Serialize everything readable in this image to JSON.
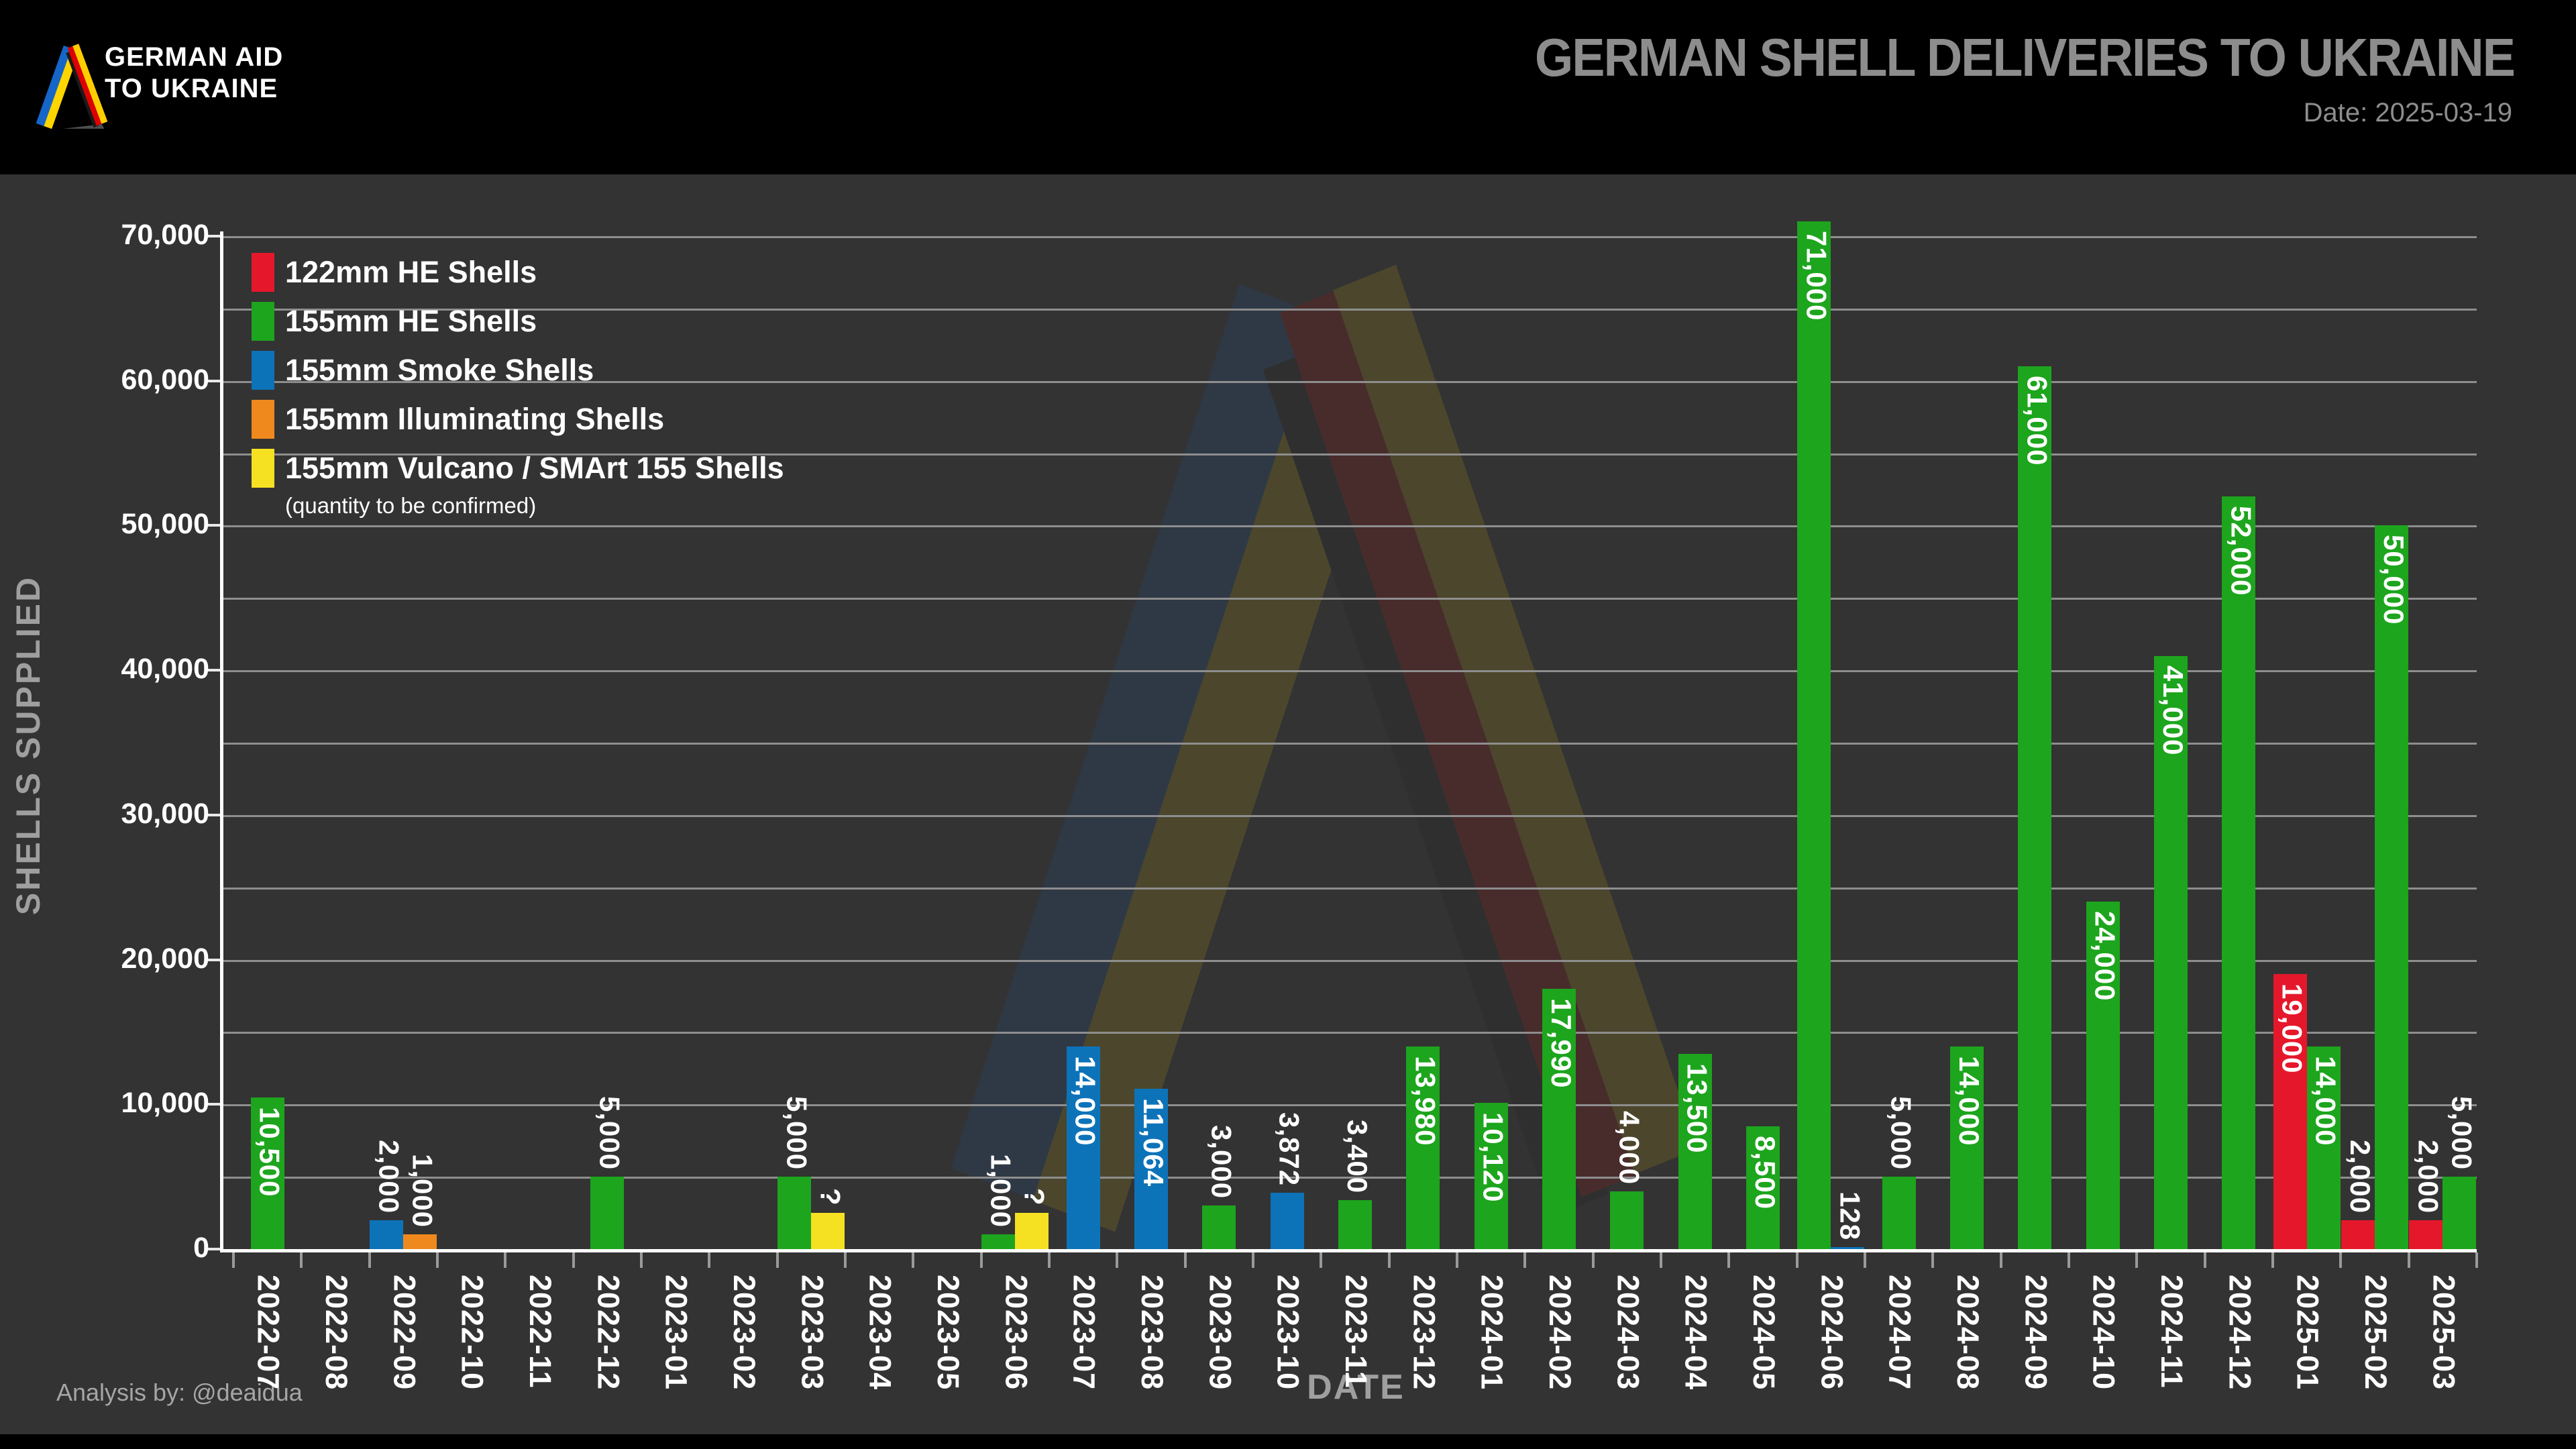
{
  "header": {
    "logo": {
      "line1": "GERMAN AID",
      "line2": "TO UKRAINE"
    },
    "title": "GERMAN SHELL DELIVERIES TO UKRAINE",
    "date": "Date: 2025-03-19"
  },
  "legend": {
    "items": [
      {
        "label": "122mm HE Shells",
        "color": "#e5182b"
      },
      {
        "label": "155mm HE Shells",
        "color": "#1da51d"
      },
      {
        "label": "155mm Smoke Shells",
        "color": "#0d73b9"
      },
      {
        "label": "155mm Illuminating Shells",
        "color": "#f0891d"
      },
      {
        "label": "155mm Vulcano / SMArt 155 Shells",
        "color": "#f5e122"
      }
    ],
    "note": "(quantity to be confirmed)"
  },
  "axes": {
    "x_title": "DATE",
    "y_title": "SHELLS SUPPLIED",
    "y_tick_labels": [
      "0",
      "10,000",
      "20,000",
      "30,000",
      "40,000",
      "50,000",
      "60,000",
      "70,000"
    ]
  },
  "footer": {
    "credit": "Analysis by: @deaidua"
  },
  "colors": {
    "background": "#333333",
    "header_band": "#000000",
    "gridline": "#8e8e8e",
    "axis": "#ffffff",
    "title_text": "#8d8d8d",
    "axis_title_text": "#9f9f9f"
  },
  "chart_data": {
    "type": "bar",
    "title": "GERMAN SHELL DELIVERIES TO UKRAINE",
    "xlabel": "DATE",
    "ylabel": "SHELLS SUPPLIED",
    "ylim": [
      0,
      70000
    ],
    "gridline_step": 5000,
    "ytick_label_step": 10000,
    "grid": true,
    "legend_position": "upper-left",
    "label_inside_threshold": 8000,
    "series_colors": {
      "122mm HE Shells": "#e5182b",
      "155mm HE Shells": "#1da51d",
      "155mm Smoke Shells": "#0d73b9",
      "155mm Illuminating Shells": "#f0891d",
      "155mm Vulcano / SMArt 155 Shells": "#f5e122"
    },
    "categories": [
      "2022-07",
      "2022-08",
      "2022-09",
      "2022-10",
      "2022-11",
      "2022-12",
      "2023-01",
      "2023-02",
      "2023-03",
      "2023-04",
      "2023-05",
      "2023-06",
      "2023-07",
      "2023-08",
      "2023-09",
      "2023-10",
      "2023-11",
      "2023-12",
      "2024-01",
      "2024-02",
      "2024-03",
      "2024-04",
      "2024-05",
      "2024-06",
      "2024-07",
      "2024-08",
      "2024-09",
      "2024-10",
      "2024-11",
      "2024-12",
      "2025-01",
      "2025-02",
      "2025-03"
    ],
    "bars_by_month": [
      {
        "month": "2022-07",
        "bars": [
          {
            "series": "155mm HE Shells",
            "value": 10500,
            "label": "10,500"
          }
        ]
      },
      {
        "month": "2022-08",
        "bars": []
      },
      {
        "month": "2022-09",
        "bars": [
          {
            "series": "155mm Smoke Shells",
            "value": 2000,
            "label": "2,000"
          },
          {
            "series": "155mm Illuminating Shells",
            "value": 1000,
            "label": "1,000"
          }
        ]
      },
      {
        "month": "2022-10",
        "bars": []
      },
      {
        "month": "2022-11",
        "bars": []
      },
      {
        "month": "2022-12",
        "bars": [
          {
            "series": "155mm HE Shells",
            "value": 5000,
            "label": "5,000"
          }
        ]
      },
      {
        "month": "2023-01",
        "bars": []
      },
      {
        "month": "2023-02",
        "bars": []
      },
      {
        "month": "2023-03",
        "bars": [
          {
            "series": "155mm HE Shells",
            "value": 5000,
            "label": "5,000"
          },
          {
            "series": "155mm Vulcano / SMArt 155 Shells",
            "value": 2500,
            "label": "?",
            "quantity_confirmed": false
          }
        ]
      },
      {
        "month": "2023-04",
        "bars": []
      },
      {
        "month": "2023-05",
        "bars": []
      },
      {
        "month": "2023-06",
        "bars": [
          {
            "series": "155mm HE Shells",
            "value": 1000,
            "label": "1,000"
          },
          {
            "series": "155mm Vulcano / SMArt 155 Shells",
            "value": 2500,
            "label": "?",
            "quantity_confirmed": false
          }
        ]
      },
      {
        "month": "2023-07",
        "bars": [
          {
            "series": "155mm Smoke Shells",
            "value": 14000,
            "label": "14,000"
          }
        ]
      },
      {
        "month": "2023-08",
        "bars": [
          {
            "series": "155mm Smoke Shells",
            "value": 11064,
            "label": "11,064"
          }
        ]
      },
      {
        "month": "2023-09",
        "bars": [
          {
            "series": "155mm HE Shells",
            "value": 3000,
            "label": "3,000"
          }
        ]
      },
      {
        "month": "2023-10",
        "bars": [
          {
            "series": "155mm Smoke Shells",
            "value": 3872,
            "label": "3,872"
          }
        ]
      },
      {
        "month": "2023-11",
        "bars": [
          {
            "series": "155mm HE Shells",
            "value": 3400,
            "label": "3,400"
          }
        ]
      },
      {
        "month": "2023-12",
        "bars": [
          {
            "series": "155mm HE Shells",
            "value": 13980,
            "label": "13,980"
          }
        ]
      },
      {
        "month": "2024-01",
        "bars": [
          {
            "series": "155mm HE Shells",
            "value": 10120,
            "label": "10,120"
          }
        ]
      },
      {
        "month": "2024-02",
        "bars": [
          {
            "series": "155mm HE Shells",
            "value": 17990,
            "label": "17,990"
          }
        ]
      },
      {
        "month": "2024-03",
        "bars": [
          {
            "series": "155mm HE Shells",
            "value": 4000,
            "label": "4,000"
          }
        ]
      },
      {
        "month": "2024-04",
        "bars": [
          {
            "series": "155mm HE Shells",
            "value": 13500,
            "label": "13,500"
          }
        ]
      },
      {
        "month": "2024-05",
        "bars": [
          {
            "series": "155mm HE Shells",
            "value": 8500,
            "label": "8,500"
          }
        ]
      },
      {
        "month": "2024-06",
        "bars": [
          {
            "series": "155mm HE Shells",
            "value": 71000,
            "label": "71,000"
          },
          {
            "series": "155mm Smoke Shells",
            "value": 128,
            "label": "128"
          }
        ]
      },
      {
        "month": "2024-07",
        "bars": [
          {
            "series": "155mm HE Shells",
            "value": 5000,
            "label": "5,000"
          }
        ]
      },
      {
        "month": "2024-08",
        "bars": [
          {
            "series": "155mm HE Shells",
            "value": 14000,
            "label": "14,000"
          }
        ]
      },
      {
        "month": "2024-09",
        "bars": [
          {
            "series": "155mm HE Shells",
            "value": 61000,
            "label": "61,000"
          }
        ]
      },
      {
        "month": "2024-10",
        "bars": [
          {
            "series": "155mm HE Shells",
            "value": 24000,
            "label": "24,000"
          }
        ]
      },
      {
        "month": "2024-11",
        "bars": [
          {
            "series": "155mm HE Shells",
            "value": 41000,
            "label": "41,000"
          }
        ]
      },
      {
        "month": "2024-12",
        "bars": [
          {
            "series": "155mm HE Shells",
            "value": 52000,
            "label": "52,000"
          }
        ]
      },
      {
        "month": "2025-01",
        "bars": [
          {
            "series": "122mm HE Shells",
            "value": 19000,
            "label": "19,000"
          },
          {
            "series": "155mm HE Shells",
            "value": 14000,
            "label": "14,000"
          }
        ]
      },
      {
        "month": "2025-02",
        "bars": [
          {
            "series": "122mm HE Shells",
            "value": 2000,
            "label": "2,000"
          },
          {
            "series": "155mm HE Shells",
            "value": 50000,
            "label": "50,000"
          }
        ]
      },
      {
        "month": "2025-03",
        "bars": [
          {
            "series": "122mm HE Shells",
            "value": 2000,
            "label": "2,000"
          },
          {
            "series": "155mm HE Shells",
            "value": 5000,
            "label": "5,000"
          }
        ]
      }
    ]
  }
}
